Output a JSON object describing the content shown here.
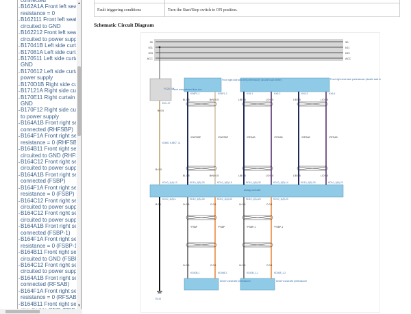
{
  "sidebar": {
    "items": [
      [
        "connected"
      ],
      [
        "B162A1A Front left seat c",
        "resistance = 0"
      ],
      [
        "B162111 Front left seat o",
        "circuited to GND"
      ],
      [
        "B162212 Front left seat c",
        "circuited to power supply"
      ],
      [
        "B17041B Left side curtain"
      ],
      [
        "B17081A Left side curtain"
      ],
      [
        "B170511 Left side curtain",
        "GND"
      ],
      [
        "B170612 Left side curtain",
        "power supply"
      ],
      [
        "B170D1B Right side curt"
      ],
      [
        "B17121A Right side curta"
      ],
      [
        "B170E11 Right curtain ai",
        "GND"
      ],
      [
        "B170F12 Right side curta",
        "to power supply"
      ],
      [
        "B164A1B Front right seat",
        "connected (RHFSBP)"
      ],
      [
        "B164F1A Front right seat",
        "resistance = 0 (RHFSBP)"
      ],
      [
        "B164B11 Front right seat",
        "circuited to GND (RHFSBP"
      ],
      [
        "B164C12 Front right seat",
        "circuited to power supply"
      ],
      [
        "B164A1B Front right seat",
        "connected (FSBP)"
      ],
      [
        "B164F1A Front right seat",
        "resistance = 0 (FSBP)"
      ],
      [
        "B164C12 Front right seat",
        "circuited to power supply"
      ],
      [
        "B164C12 Front right seat",
        "circuited to power supply"
      ],
      [
        "B164A1B Front right seat",
        "connected (FSBP-1)"
      ],
      [
        "B164F1A Front right seat",
        "resistance = 0 (FSBP-1)"
      ],
      [
        "B164B11 Front right seat",
        "circuited to GND (FSBP-"
      ],
      [
        "B164C12 Front right seat",
        "circuited to power supply"
      ],
      [
        "B164A1B Front right seat",
        "connected (RFSAB)"
      ],
      [
        "B164F1A Front right seat",
        "resistance = 0 (RFSAB)"
      ],
      [
        "B164B11 Front right seat",
        "circuited to GND (RFSAB"
      ]
    ]
  },
  "table": {
    "label": "Fault triggering conditions",
    "value": "Turn the Start/Stop switch to ON position."
  },
  "heading": "Schematic Circuit Diagram",
  "diagram": {
    "colors": {
      "bus": "#d6d6d6",
      "module": "#8fcbe6",
      "fusebox": "#d9d9d9",
      "navy": "#1f2a5a",
      "tan": "#c9b38a",
      "brw": "#d8cdb8",
      "purple": "#7a5a8c",
      "gray": "#808080",
      "orange": "#f0a060",
      "black": "#111111",
      "label": "#3a6ea5"
    },
    "bus_labels": [
      "30",
      "IG1",
      "IG3",
      "ACC"
    ],
    "labels": [
      "F/128 15A",
      "Front compartment fuse box",
      "E1C-27",
      "Br 0.5",
      "Front right side seat belt pretensioner (double load limiter)",
      "KS6P1-1",
      "KS6P1-2",
      "BL 0.5",
      "Br/W 0.5",
      "KX6-1",
      "KX6-2",
      "KX6-3",
      "KX6-4",
      "L/B 0.5",
      "L/O 0.5",
      "L/B 0.5",
      "L/O 0.5",
      "Front right seat back pretensioner (double load limiter) + far side airbag wire",
      "*RHFSBP",
      "*RHFSBP",
      "*RFSAB",
      "*RFSAB",
      "*RFSAB",
      "*RFSAB",
      "KJB01 KJB07 -11",
      "Br 0.5",
      "BL 0.5",
      "Br/W 0.5",
      "L/B 0.5",
      "L/O 0.5",
      "L/B 0.5",
      "L/O 0.5",
      "KD10_1(A)-13",
      "KD10_1(B)-30",
      "KD10_1(B)-15",
      "KD10_1(B)-30",
      "KD10_1(B)-14",
      "KD10_1(B)-30",
      "KD10_1(B)-23",
      "Airbag controller",
      "KD10_1(A)-1",
      "KD10_1(A)-34",
      "KD10_1(A)-33",
      "KD10_1(A)-24",
      "KD10_1(A)-23",
      "B 0.5",
      "Gr 0.5",
      "O 0.5",
      "Gr 0.5",
      "O 0.5",
      "*FSBP",
      "*FSBP",
      "*FSBP-1",
      "*FSBP-1",
      "Gr 0.5",
      "O 0.5",
      "Gr 0.5",
      "O 0.5",
      "KD408-1",
      "KD408-2",
      "KD408_1-1",
      "KD408_1-2",
      "Driver's seat belt pretensioner",
      "Driver's seat belt pretensioner",
      "E415"
    ]
  }
}
